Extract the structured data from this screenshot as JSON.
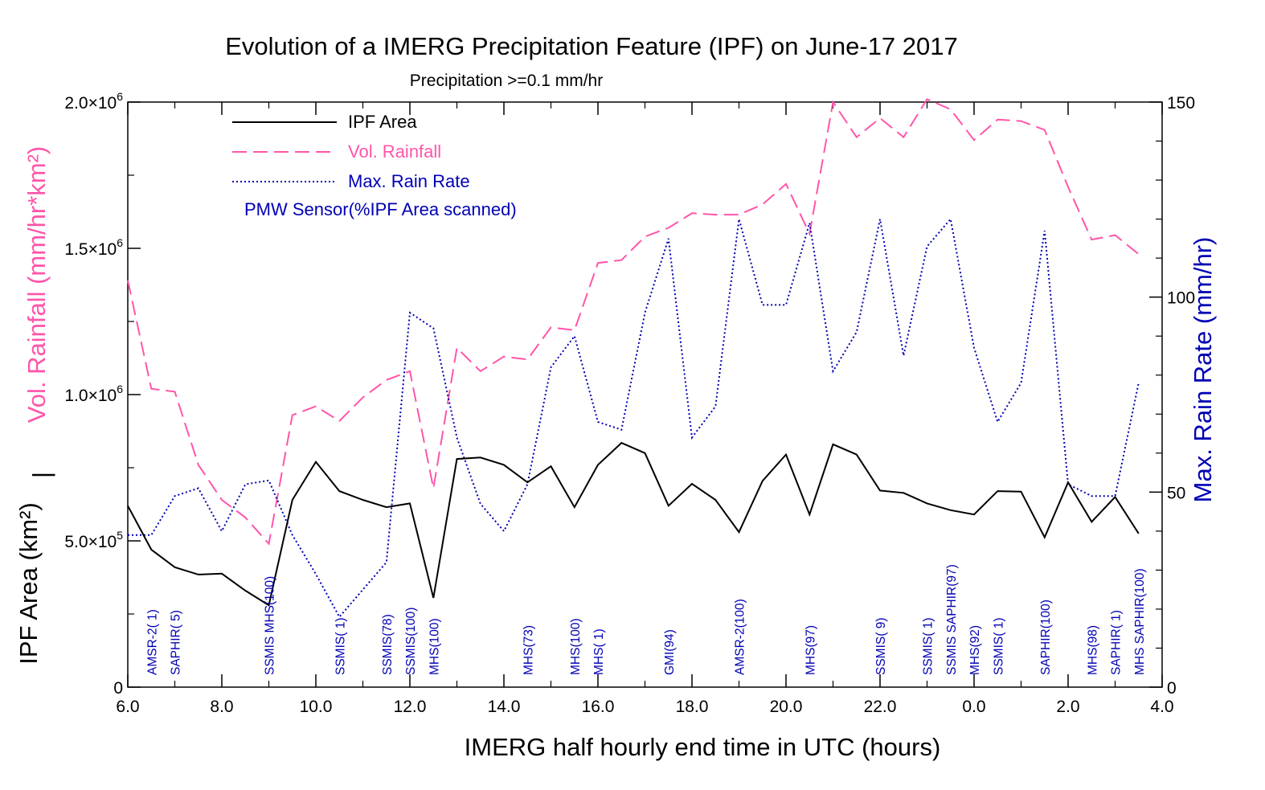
{
  "chart_data": {
    "type": "line",
    "title": "Evolution of a IMERG Precipitation Feature (IPF) on June-17 2017",
    "subtitle": "Precipitation >=0.1 mm/hr",
    "xlabel": "IMERG half hourly end time in UTC (hours)",
    "ylabel_left_top": "Vol. Rainfall (mm/hr*km²)",
    "ylabel_left_separator": "|",
    "ylabel_left_bottom": "IPF Area (km²)",
    "ylabel_right": "Max. Rain Rate (mm/hr)",
    "x_ticks": [
      "6.0",
      "8.0",
      "10.0",
      "12.0",
      "14.0",
      "16.0",
      "18.0",
      "20.0",
      "22.0",
      "0.0",
      "2.0",
      "4.0"
    ],
    "xlim": [
      6.0,
      28.0
    ],
    "y_left_ticks": [
      {
        "value": 0,
        "mant": "0",
        "exp": ""
      },
      {
        "value": 500000,
        "mant": "5.0×10",
        "exp": "5"
      },
      {
        "value": 1000000,
        "mant": "1.0×10",
        "exp": "6"
      },
      {
        "value": 1500000,
        "mant": "1.5×10",
        "exp": "6"
      },
      {
        "value": 2000000,
        "mant": "2.0×10",
        "exp": "6"
      }
    ],
    "ylim_left": [
      0,
      2000000
    ],
    "y_right_ticks": [
      "0",
      "50",
      "100",
      "150"
    ],
    "ylim_right": [
      0,
      150
    ],
    "x": [
      6.0,
      6.5,
      7.0,
      7.5,
      8.0,
      8.5,
      9.0,
      9.5,
      10.0,
      10.5,
      11.0,
      11.5,
      12.0,
      12.5,
      13.0,
      13.5,
      14.0,
      14.5,
      15.0,
      15.5,
      16.0,
      16.5,
      17.0,
      17.5,
      18.0,
      18.5,
      19.0,
      19.5,
      20.0,
      20.5,
      21.0,
      21.5,
      22.0,
      22.5,
      23.0,
      23.5,
      24.0,
      24.5,
      25.0,
      25.5,
      26.0,
      26.5,
      27.0,
      27.5
    ],
    "legend": [
      {
        "label": "IPF Area",
        "color": "#000000",
        "dash": "solid"
      },
      {
        "label": "Vol. Rainfall",
        "color": "#ff55aa",
        "dash": "dashed"
      },
      {
        "label": "Max. Rain Rate",
        "color": "#0000b4",
        "dash": "dotted"
      }
    ],
    "legend_note": "PMW Sensor(%IPF Area scanned)",
    "series": [
      {
        "name": "IPF Area",
        "axis": "left",
        "color": "#000000",
        "values": [
          620000,
          470000,
          410000,
          385000,
          388000,
          330000,
          280000,
          640000,
          770000,
          670000,
          640000,
          615000,
          628000,
          305000,
          780000,
          785000,
          760000,
          700000,
          755000,
          615000,
          760000,
          835000,
          800000,
          620000,
          695000,
          640000,
          530000,
          705000,
          795000,
          590000,
          830000,
          795000,
          672000,
          664000,
          628000,
          605000,
          590000,
          670000,
          668000,
          512000,
          700000,
          565000,
          650000,
          525000
        ]
      },
      {
        "name": "Vol. Rainfall",
        "axis": "left",
        "color": "#ff55aa",
        "values": [
          1390000,
          1020000,
          1010000,
          760000,
          640000,
          580000,
          490000,
          930000,
          960000,
          910000,
          990000,
          1050000,
          1080000,
          680000,
          1160000,
          1080000,
          1130000,
          1120000,
          1230000,
          1220000,
          1450000,
          1460000,
          1540000,
          1570000,
          1620000,
          1615000,
          1615000,
          1650000,
          1720000,
          1550000,
          2000000,
          1880000,
          1945000,
          1880000,
          2010000,
          1975000,
          1870000,
          1940000,
          1935000,
          1905000,
          1710000,
          1530000,
          1545000,
          1480000
        ]
      },
      {
        "name": "Max. Rain Rate",
        "axis": "right",
        "color": "#0000b4",
        "values": [
          39,
          39,
          49,
          51,
          40,
          52,
          53,
          39,
          29,
          18,
          25,
          32,
          96,
          92,
          64,
          47,
          40,
          52,
          82,
          90,
          68,
          66,
          96,
          115,
          64,
          72,
          120,
          98,
          98,
          119,
          81,
          91,
          120,
          85,
          113,
          120,
          87,
          68,
          78,
          117,
          52,
          49,
          49,
          78
        ]
      }
    ],
    "sensors": [
      {
        "x": 6.5,
        "label": "AMSR-2( 1)"
      },
      {
        "x": 7.0,
        "label": "SAPHIR( 5)"
      },
      {
        "x": 9.0,
        "label": "SSMIS MHS(100)"
      },
      {
        "x": 10.5,
        "label": "SSMIS( 1)"
      },
      {
        "x": 11.5,
        "label": "SSMIS(78)"
      },
      {
        "x": 12.0,
        "label": "SSMIS(100)"
      },
      {
        "x": 12.5,
        "label": "MHS(100)"
      },
      {
        "x": 14.5,
        "label": "MHS(73)"
      },
      {
        "x": 15.5,
        "label": "MHS(100)"
      },
      {
        "x": 16.0,
        "label": "MHS( 1)"
      },
      {
        "x": 17.5,
        "label": "GMI(94)"
      },
      {
        "x": 19.0,
        "label": "AMSR-2(100)"
      },
      {
        "x": 20.5,
        "label": "MHS(97)"
      },
      {
        "x": 22.0,
        "label": "SSMIS( 9)"
      },
      {
        "x": 23.0,
        "label": "SSMIS( 1)"
      },
      {
        "x": 23.5,
        "label": "SSMIS SAPHIR(97)"
      },
      {
        "x": 24.0,
        "label": "MHS(92)"
      },
      {
        "x": 24.5,
        "label": "SSMIS( 1)"
      },
      {
        "x": 25.5,
        "label": "SAPHIR(100)"
      },
      {
        "x": 26.5,
        "label": "MHS(98)"
      },
      {
        "x": 27.0,
        "label": "SAPHIR( 1)"
      },
      {
        "x": 27.5,
        "label": "MHS SAPHIR(100)"
      }
    ],
    "grid": false,
    "legend_position": "top-left"
  }
}
